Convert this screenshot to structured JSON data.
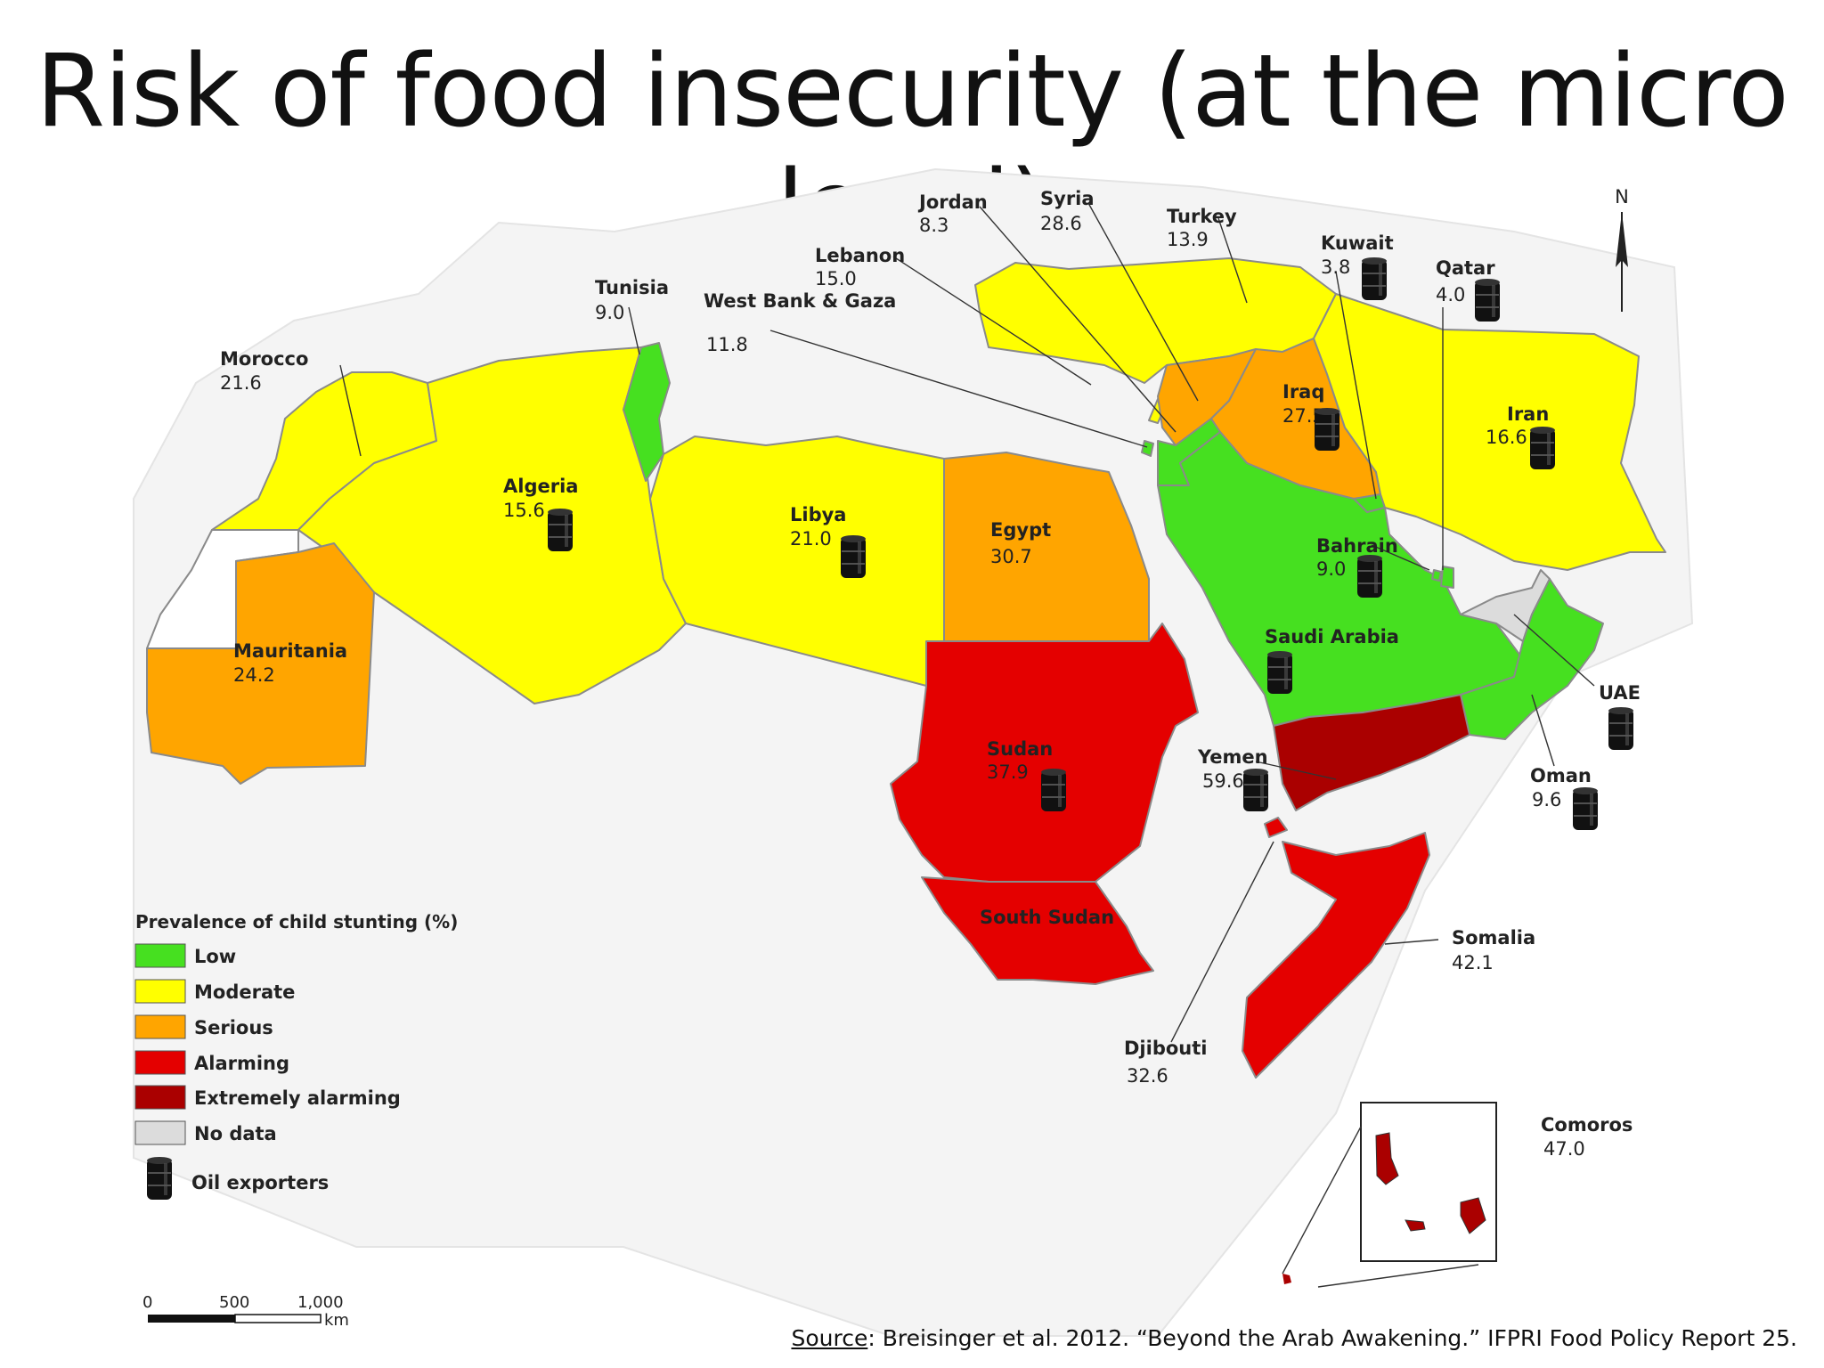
{
  "title": "Risk of food insecurity (at the micro level)",
  "colors": {
    "low": "#46e020",
    "moderate": "#ffff00",
    "serious": "#ffa500",
    "alarming": "#e40000",
    "extremely_alarming": "#aa0000",
    "no_data": "#dcdcdc",
    "background_land": "#f2f2f2"
  },
  "countries": [
    {
      "name": "Morocco",
      "value": "21.6",
      "category": "moderate"
    },
    {
      "name": "Tunisia",
      "value": "9.0",
      "category": "low"
    },
    {
      "name": "Algeria",
      "value": "15.6",
      "category": "moderate",
      "oil": true
    },
    {
      "name": "Libya",
      "value": "21.0",
      "category": "moderate",
      "oil": true
    },
    {
      "name": "Mauritania",
      "value": "24.2",
      "category": "serious"
    },
    {
      "name": "Egypt",
      "value": "30.7",
      "category": "serious"
    },
    {
      "name": "Sudan",
      "value": "37.9",
      "category": "alarming",
      "oil": true
    },
    {
      "name": "South Sudan",
      "value": "",
      "category": "alarming"
    },
    {
      "name": "West Bank & Gaza",
      "value": "11.8",
      "category": "low"
    },
    {
      "name": "Lebanon",
      "value": "15.0",
      "category": "moderate"
    },
    {
      "name": "Jordan",
      "value": "8.3",
      "category": "low"
    },
    {
      "name": "Syria",
      "value": "28.6",
      "category": "serious"
    },
    {
      "name": "Turkey",
      "value": "13.9",
      "category": "moderate"
    },
    {
      "name": "Iraq",
      "value": "27.5",
      "category": "serious",
      "oil": true
    },
    {
      "name": "Kuwait",
      "value": "3.8",
      "category": "low",
      "oil": true
    },
    {
      "name": "Qatar",
      "value": "4.0",
      "category": "low",
      "oil": true
    },
    {
      "name": "Iran",
      "value": "16.6",
      "category": "moderate",
      "oil": true
    },
    {
      "name": "Bahrain",
      "value": "9.0",
      "category": "low",
      "oil": true
    },
    {
      "name": "Saudi Arabia",
      "value": "",
      "category": "low",
      "oil": true
    },
    {
      "name": "UAE",
      "value": "",
      "category": "no_data",
      "oil": true
    },
    {
      "name": "Yemen",
      "value": "59.6",
      "category": "extremely_alarming",
      "oil": true
    },
    {
      "name": "Oman",
      "value": "9.6",
      "category": "low",
      "oil": true
    },
    {
      "name": "Somalia",
      "value": "42.1",
      "category": "alarming"
    },
    {
      "name": "Djibouti",
      "value": "32.6",
      "category": "alarming"
    },
    {
      "name": "Comoros",
      "value": "47.0",
      "category": "alarming"
    }
  ],
  "compass": "N",
  "legend": {
    "title": "Prevalence of child stunting (%)",
    "items": [
      {
        "label": "Low",
        "color": "#46e020"
      },
      {
        "label": "Moderate",
        "color": "#ffff00"
      },
      {
        "label": "Serious",
        "color": "#ffa500"
      },
      {
        "label": "Alarming",
        "color": "#e40000"
      },
      {
        "label": "Extremely alarming",
        "color": "#aa0000"
      },
      {
        "label": "No data",
        "color": "#dcdcdc"
      }
    ],
    "oil_label": "Oil exporters",
    "oil_icon": "oil-barrel-icon"
  },
  "scale_bar": {
    "ticks": [
      "0",
      "500",
      "1,000"
    ],
    "unit": "km"
  },
  "source": {
    "prefix": "Source",
    "text": ": Breisinger et al. 2012. “Beyond the Arab Awakening.” IFPRI Food Policy Report 25."
  }
}
